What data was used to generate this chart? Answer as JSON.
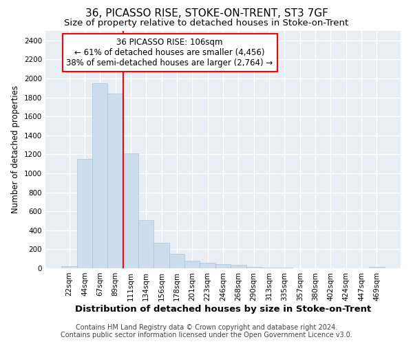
{
  "title": "36, PICASSO RISE, STOKE-ON-TRENT, ST3 7GF",
  "subtitle": "Size of property relative to detached houses in Stoke-on-Trent",
  "xlabel": "Distribution of detached houses by size in Stoke-on-Trent",
  "ylabel": "Number of detached properties",
  "categories": [
    "22sqm",
    "44sqm",
    "67sqm",
    "89sqm",
    "111sqm",
    "134sqm",
    "156sqm",
    "178sqm",
    "201sqm",
    "223sqm",
    "246sqm",
    "268sqm",
    "290sqm",
    "313sqm",
    "335sqm",
    "357sqm",
    "380sqm",
    "402sqm",
    "424sqm",
    "447sqm",
    "469sqm"
  ],
  "values": [
    25,
    1150,
    1950,
    1840,
    1210,
    510,
    265,
    150,
    80,
    55,
    40,
    35,
    15,
    8,
    5,
    3,
    2,
    2,
    2,
    2,
    15
  ],
  "bar_color": "#ccdded",
  "bar_edgecolor": "#aac4d8",
  "vline_color": "red",
  "vline_lw": 1.5,
  "vline_position": 3.5,
  "annotation_text": "36 PICASSO RISE: 106sqm\n← 61% of detached houses are smaller (4,456)\n38% of semi-detached houses are larger (2,764) →",
  "annotation_box_edgecolor": "red",
  "annotation_box_facecolor": "white",
  "ylim": [
    0,
    2500
  ],
  "yticks": [
    0,
    200,
    400,
    600,
    800,
    1000,
    1200,
    1400,
    1600,
    1800,
    2000,
    2200,
    2400
  ],
  "footer_line1": "Contains HM Land Registry data © Crown copyright and database right 2024.",
  "footer_line2": "Contains public sector information licensed under the Open Government Licence v3.0.",
  "background_color": "#ffffff",
  "plot_bg_color": "#e8eef4",
  "grid_color": "#ffffff",
  "title_fontsize": 11,
  "subtitle_fontsize": 9.5,
  "xlabel_fontsize": 9.5,
  "ylabel_fontsize": 8.5,
  "tick_fontsize": 7.5,
  "annotation_fontsize": 8.5,
  "footer_fontsize": 7
}
